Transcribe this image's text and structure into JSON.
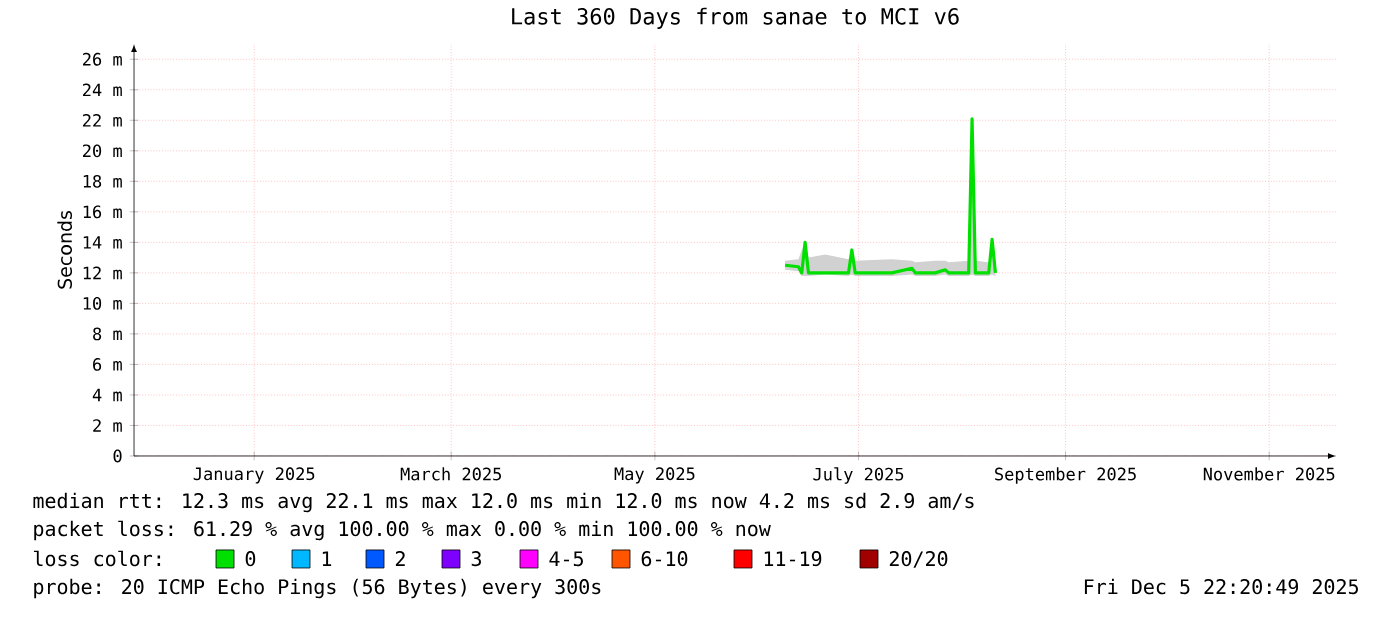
{
  "chart_data": {
    "type": "line",
    "title": "Last 360 Days from sanae to MCI v6",
    "ylabel": "Seconds",
    "x": [
      "2025-06-23",
      "2025-06-27",
      "2025-06-28",
      "2025-06-29",
      "2025-06-30",
      "2025-07-05",
      "2025-07-12",
      "2025-07-13",
      "2025-07-14",
      "2025-07-25",
      "2025-07-31",
      "2025-08-01",
      "2025-08-07",
      "2025-08-10",
      "2025-08-11",
      "2025-08-17",
      "2025-08-18",
      "2025-08-19",
      "2025-08-23",
      "2025-08-24",
      "2025-08-25"
    ],
    "series": [
      {
        "name": "0",
        "color": "#00e000",
        "values": [
          12.5,
          12.4,
          12.0,
          14.0,
          12.0,
          12.0,
          12.0,
          13.5,
          12.0,
          12.0,
          12.3,
          12.0,
          12.0,
          12.2,
          12.0,
          12.0,
          22.1,
          12.0,
          12.0,
          14.2,
          12.0
        ],
        "lower": [
          12.2,
          12.1,
          11.8,
          11.8,
          11.8,
          11.9,
          11.8,
          11.9,
          11.8,
          11.8,
          11.9,
          11.8,
          11.8,
          11.9,
          11.8,
          11.8,
          11.9,
          11.8,
          11.8,
          11.9,
          11.8
        ],
        "upper": [
          12.8,
          12.9,
          13.5,
          14.0,
          13.0,
          13.2,
          12.9,
          13.5,
          12.8,
          12.9,
          12.8,
          12.7,
          12.8,
          12.8,
          12.7,
          12.8,
          22.1,
          12.8,
          12.7,
          14.2,
          12.8
        ]
      },
      {
        "name": "1",
        "color": "#00b8ff",
        "values": [
          null,
          null,
          null,
          null,
          null,
          null,
          null,
          null,
          null,
          null,
          null,
          null,
          null,
          null,
          null,
          null,
          null,
          null,
          null,
          null,
          null
        ]
      },
      {
        "name": "2",
        "color": "#0059ff",
        "values": [
          null,
          null,
          null,
          null,
          null,
          null,
          null,
          null,
          null,
          null,
          null,
          null,
          null,
          null,
          null,
          null,
          null,
          null,
          null,
          null,
          null
        ]
      },
      {
        "name": "3",
        "color": "#7e00ff",
        "values": [
          null,
          null,
          null,
          null,
          null,
          null,
          null,
          null,
          null,
          null,
          null,
          null,
          null,
          null,
          null,
          null,
          null,
          null,
          null,
          null,
          null
        ]
      },
      {
        "name": "4-5",
        "color": "#ff00ff",
        "values": [
          null,
          null,
          null,
          null,
          null,
          null,
          null,
          null,
          null,
          null,
          null,
          null,
          null,
          null,
          null,
          null,
          null,
          null,
          null,
          null,
          null
        ]
      },
      {
        "name": "6-10",
        "color": "#ff5500",
        "values": [
          null,
          null,
          null,
          null,
          null,
          null,
          null,
          null,
          null,
          null,
          null,
          null,
          null,
          null,
          null,
          null,
          null,
          null,
          null,
          null,
          null
        ]
      },
      {
        "name": "11-19",
        "color": "#ff0000",
        "values": [
          null,
          null,
          null,
          null,
          null,
          null,
          null,
          null,
          null,
          null,
          null,
          null,
          null,
          null,
          null,
          null,
          null,
          null,
          null,
          null,
          null
        ]
      },
      {
        "name": "20/20",
        "color": "#a10000",
        "values": [
          null,
          null,
          null,
          null,
          null,
          null,
          null,
          null,
          null,
          null,
          null,
          null,
          null,
          null,
          null,
          null,
          null,
          null,
          null,
          null,
          null
        ]
      }
    ],
    "legend": "bottom",
    "legend_title": "loss color:",
    "xlim": [
      "2024-12-10",
      "2025-12-05"
    ],
    "xticks": [
      {
        "value": "2025-01-15",
        "label": "January 2025"
      },
      {
        "value": "2025-03-15",
        "label": "March 2025"
      },
      {
        "value": "2025-05-15",
        "label": "May 2025"
      },
      {
        "value": "2025-07-15",
        "label": "July 2025"
      },
      {
        "value": "2025-09-15",
        "label": "September 2025"
      },
      {
        "value": "2025-11-15",
        "label": "November 2025"
      }
    ],
    "ylim": [
      0,
      27
    ],
    "yticks": [
      0,
      {
        "value": 2,
        "label": "2 m"
      },
      {
        "value": 4,
        "label": "4 m"
      },
      {
        "value": 6,
        "label": "6 m"
      },
      {
        "value": 8,
        "label": "8 m"
      },
      {
        "value": 10,
        "label": "10 m"
      },
      {
        "value": 12,
        "label": "12 m"
      },
      {
        "value": 14,
        "label": "14 m"
      },
      {
        "value": 16,
        "label": "16 m"
      },
      {
        "value": 18,
        "label": "18 m"
      },
      {
        "value": 20,
        "label": "20 m"
      },
      {
        "value": 22,
        "label": "22 m"
      },
      {
        "value": 24,
        "label": "24 m"
      },
      {
        "value": 26,
        "label": "26 m"
      }
    ],
    "grid": true,
    "annotations": [
      "median rtt:  12.3 ms avg  22.1 ms max  12.0 ms min  12.0 ms now  4.2 ms sd  2.9   am/s",
      "packet loss: 61.29 % avg  100.00 % max  0.00 % min  100.00 % now",
      "probe:       20 ICMP Echo Pings (56 Bytes) every 300s",
      "Fri Dec  5 22:20:49 2025"
    ]
  }
}
